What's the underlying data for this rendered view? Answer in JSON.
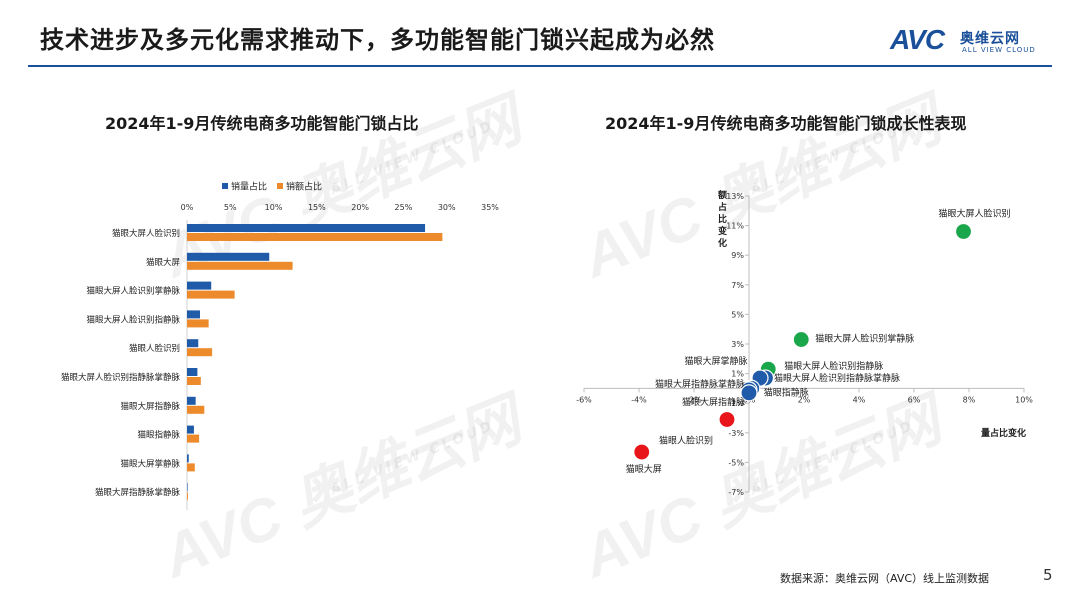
{
  "header": {
    "title": "技术进步及多元化需求推动下，多功能智能门锁兴起成为必然",
    "logo_mark": "AVC",
    "logo_cn": "奥维云网",
    "logo_en": "ALL VIEW CLOUD"
  },
  "watermark": {
    "mark": "AVC 奥维云网",
    "sub": "ALL VIEW CLOUD"
  },
  "footer": {
    "source": "数据来源：奥维云网（AVC）线上监测数据",
    "page": "5"
  },
  "colors": {
    "blue": "#1f5ba8",
    "orange": "#ec8a2c",
    "green": "#1aa64a",
    "red": "#e8151b",
    "rule": "#1a4f99"
  },
  "chart_data": [
    {
      "type": "bar",
      "orientation": "horizontal",
      "title": "2024年1-9月传统电商多功能智能门锁占比",
      "legend_position": "top",
      "xlim": [
        0,
        35
      ],
      "x_ticks": [
        "0%",
        "5%",
        "10%",
        "15%",
        "20%",
        "25%",
        "30%",
        "35%"
      ],
      "categories": [
        "猫眼大屏人脸识别",
        "猫眼大屏",
        "猫眼大屏人脸识别掌静脉",
        "猫眼大屏人脸识别指静脉",
        "猫眼人脸识别",
        "猫眼大屏人脸识别指静脉掌静脉",
        "猫眼大屏指静脉",
        "猫眼指静脉",
        "猫眼大屏掌静脉",
        "猫眼大屏指静脉掌静脉"
      ],
      "series": [
        {
          "name": "销量占比",
          "color": "#1f5ba8",
          "values": [
            27.5,
            9.5,
            2.8,
            1.5,
            1.3,
            1.2,
            1.0,
            0.8,
            0.2,
            0.05
          ]
        },
        {
          "name": "销额占比",
          "color": "#ec8a2c",
          "values": [
            29.5,
            12.2,
            5.5,
            2.5,
            2.9,
            1.6,
            2.0,
            1.4,
            0.9,
            0.1
          ]
        }
      ]
    },
    {
      "type": "scatter",
      "title": "2024年1-9月传统电商多功能智能门锁成长性表现",
      "xlabel": "量占比变化",
      "ylabel": "额占比变化",
      "xlim": [
        -6,
        10
      ],
      "ylim": [
        -7,
        13
      ],
      "x_ticks": [
        "-6%",
        "-4%",
        "-2%",
        "0%",
        "2%",
        "4%",
        "6%",
        "8%",
        "10%"
      ],
      "y_ticks": [
        "13%",
        "11%",
        "9%",
        "7%",
        "5%",
        "3%",
        "1%",
        "-1%",
        "-3%",
        "-5%",
        "-7%"
      ],
      "points": [
        {
          "label": "猫眼大屏人脸识别",
          "x": 7.8,
          "y": 10.6,
          "color": "#1aa64a"
        },
        {
          "label": "猫眼大屏人脸识别掌静脉",
          "x": 1.9,
          "y": 3.3,
          "color": "#1aa64a"
        },
        {
          "label": "猫眼大屏人脸识别指静脉",
          "x": 0.7,
          "y": 1.3,
          "color": "#1aa64a"
        },
        {
          "label": "猫眼大屏掌静脉",
          "x": 0.6,
          "y": 0.7,
          "color": "#1f5ba8"
        },
        {
          "label": "猫眼大屏人脸识别指静脉掌静脉",
          "x": 0.4,
          "y": 0.7,
          "color": "#1f5ba8"
        },
        {
          "label": "猫眼指静脉",
          "x": 0.1,
          "y": 0.0,
          "color": "#1f5ba8"
        },
        {
          "label": "猫眼大屏指静脉掌静脉",
          "x": 0.0,
          "y": -0.1,
          "color": "#1f5ba8"
        },
        {
          "label": "猫眼大屏指静脉",
          "x": 0.0,
          "y": -0.3,
          "color": "#1f5ba8"
        },
        {
          "label": "猫眼人脸识别",
          "x": -0.8,
          "y": -2.1,
          "color": "#e8151b"
        },
        {
          "label": "猫眼大屏",
          "x": -3.9,
          "y": -4.3,
          "color": "#e8151b"
        }
      ]
    }
  ]
}
